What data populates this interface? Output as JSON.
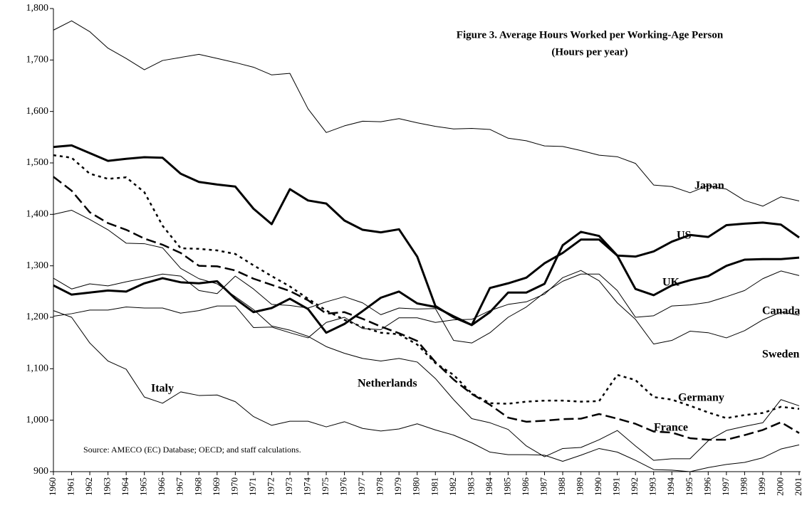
{
  "chart_data": {
    "type": "line",
    "title": "Figure 3.  Average Hours Worked per Working-Age Person",
    "subtitle": "(Hours per year)",
    "annotation": "Source: AMECO (EC) Database; OECD; and staff calculations.",
    "categories": [
      "1960",
      "1961",
      "1962",
      "1963",
      "1964",
      "1965",
      "1966",
      "1967",
      "1968",
      "1969",
      "1970",
      "1971",
      "1972",
      "1973",
      "1974",
      "1975",
      "1976",
      "1977",
      "1978",
      "1979",
      "1980",
      "1981",
      "1982",
      "1983",
      "1984",
      "1985",
      "1986",
      "1987",
      "1988",
      "1989",
      "1990",
      "1991",
      "1992",
      "1993",
      "1994",
      "1995",
      "1996",
      "1997",
      "1998",
      "1999",
      "2000",
      "2001"
    ],
    "ylim": [
      900,
      1800
    ],
    "yticks": [
      {
        "value": 900,
        "label": "900"
      },
      {
        "value": 1000,
        "label": "1,000"
      },
      {
        "value": 1100,
        "label": "1,100"
      },
      {
        "value": 1200,
        "label": "1,200"
      },
      {
        "value": 1300,
        "label": "1,300"
      },
      {
        "value": 1400,
        "label": "1,400"
      },
      {
        "value": 1500,
        "label": "1,500"
      },
      {
        "value": 1600,
        "label": "1,600"
      },
      {
        "value": 1700,
        "label": "1,700"
      },
      {
        "value": 1800,
        "label": "1,800"
      }
    ],
    "grid": false,
    "series": [
      {
        "name": "Japan",
        "color": "#000000",
        "style": "solid",
        "values": [
          1758,
          1776,
          1755,
          1723,
          1703,
          1681,
          1699,
          1705,
          1711,
          1703,
          1695,
          1686,
          1671,
          1674,
          1605,
          1559,
          1572,
          1581,
          1580,
          1586,
          1578,
          1571,
          1566,
          1567,
          1565,
          1548,
          1543,
          1533,
          1532,
          1524,
          1515,
          1512,
          1499,
          1457,
          1454,
          1442,
          1456,
          1449,
          1427,
          1416,
          1434,
          1426
        ]
      },
      {
        "name": "US",
        "color": "#000000",
        "style": "bold",
        "values": [
          1531,
          1534,
          1519,
          1504,
          1508,
          1511,
          1510,
          1479,
          1463,
          1458,
          1454,
          1411,
          1381,
          1449,
          1427,
          1421,
          1388,
          1370,
          1365,
          1371,
          1318,
          1222,
          1200,
          1185,
          1257,
          1266,
          1277,
          1305,
          1325,
          1351,
          1351,
          1320,
          1318,
          1328,
          1347,
          1360,
          1356,
          1379,
          1382,
          1384,
          1380,
          1355
        ]
      },
      {
        "name": "UK",
        "color": "#000000",
        "style": "bold",
        "values": [
          1262,
          1244,
          1248,
          1252,
          1250,
          1266,
          1276,
          1268,
          1266,
          1270,
          1236,
          1210,
          1218,
          1236,
          1216,
          1170,
          1187,
          1212,
          1238,
          1250,
          1227,
          1220,
          1202,
          1185,
          1210,
          1248,
          1248,
          1265,
          1340,
          1366,
          1358,
          1320,
          1255,
          1243,
          1262,
          1272,
          1280,
          1300,
          1312,
          1313,
          1313,
          1316
        ]
      },
      {
        "name": "Canada",
        "color": "#000000",
        "style": "solid",
        "values": [
          1276,
          1255,
          1265,
          1261,
          1269,
          1276,
          1284,
          1280,
          1252,
          1246,
          1280,
          1255,
          1225,
          1223,
          1218,
          1230,
          1240,
          1228,
          1205,
          1218,
          1216,
          1217,
          1155,
          1150,
          1170,
          1200,
          1220,
          1248,
          1270,
          1284,
          1284,
          1252,
          1200,
          1203,
          1222,
          1224,
          1229,
          1240,
          1252,
          1275,
          1290,
          1281
        ]
      },
      {
        "name": "Sweden",
        "color": "#000000",
        "style": "solid",
        "values": [
          1202,
          1207,
          1214,
          1214,
          1220,
          1218,
          1218,
          1208,
          1213,
          1222,
          1222,
          1180,
          1181,
          1170,
          1160,
          1190,
          1200,
          1178,
          1176,
          1199,
          1199,
          1190,
          1195,
          1196,
          1213,
          1225,
          1230,
          1245,
          1277,
          1291,
          1271,
          1228,
          1196,
          1148,
          1155,
          1173,
          1170,
          1160,
          1174,
          1195,
          1210,
          1204
        ]
      },
      {
        "name": "Germany",
        "color": "#000000",
        "style": "dotted",
        "values": [
          1515,
          1510,
          1479,
          1469,
          1472,
          1443,
          1378,
          1334,
          1333,
          1330,
          1323,
          1301,
          1280,
          1260,
          1236,
          1213,
          1195,
          1181,
          1170,
          1167,
          1147,
          1111,
          1088,
          1052,
          1033,
          1032,
          1036,
          1038,
          1038,
          1036,
          1037,
          1088,
          1078,
          1045,
          1040,
          1028,
          1015,
          1004,
          1010,
          1014,
          1026,
          1022
        ]
      },
      {
        "name": "France",
        "color": "#000000",
        "style": "dashed",
        "values": [
          1473,
          1446,
          1404,
          1383,
          1370,
          1353,
          1341,
          1325,
          1300,
          1299,
          1291,
          1275,
          1263,
          1251,
          1233,
          1207,
          1210,
          1197,
          1182,
          1169,
          1154,
          1113,
          1079,
          1051,
          1030,
          1005,
          997,
          999,
          1002,
          1003,
          1012,
          1003,
          993,
          978,
          976,
          965,
          962,
          962,
          971,
          981,
          996,
          975
        ]
      },
      {
        "name": "Netherlands",
        "color": "#000000",
        "style": "solid",
        "values": [
          1400,
          1408,
          1390,
          1370,
          1344,
          1343,
          1335,
          1295,
          1275,
          1265,
          1240,
          1215,
          1183,
          1175,
          1163,
          1143,
          1130,
          1120,
          1115,
          1120,
          1113,
          1081,
          1040,
          1003,
          995,
          982,
          950,
          929,
          945,
          947,
          962,
          980,
          950,
          922,
          925,
          925,
          960,
          980,
          988,
          995,
          1040,
          1028
        ]
      },
      {
        "name": "Italy",
        "color": "#000000",
        "style": "solid",
        "values": [
          1213,
          1200,
          1150,
          1115,
          1099,
          1045,
          1033,
          1055,
          1048,
          1049,
          1036,
          1007,
          990,
          998,
          998,
          987,
          997,
          984,
          979,
          983,
          993,
          981,
          971,
          956,
          938,
          933,
          933,
          932,
          920,
          932,
          945,
          938,
          922,
          904,
          903,
          900,
          908,
          914,
          918,
          927,
          944,
          952
        ]
      }
    ]
  }
}
